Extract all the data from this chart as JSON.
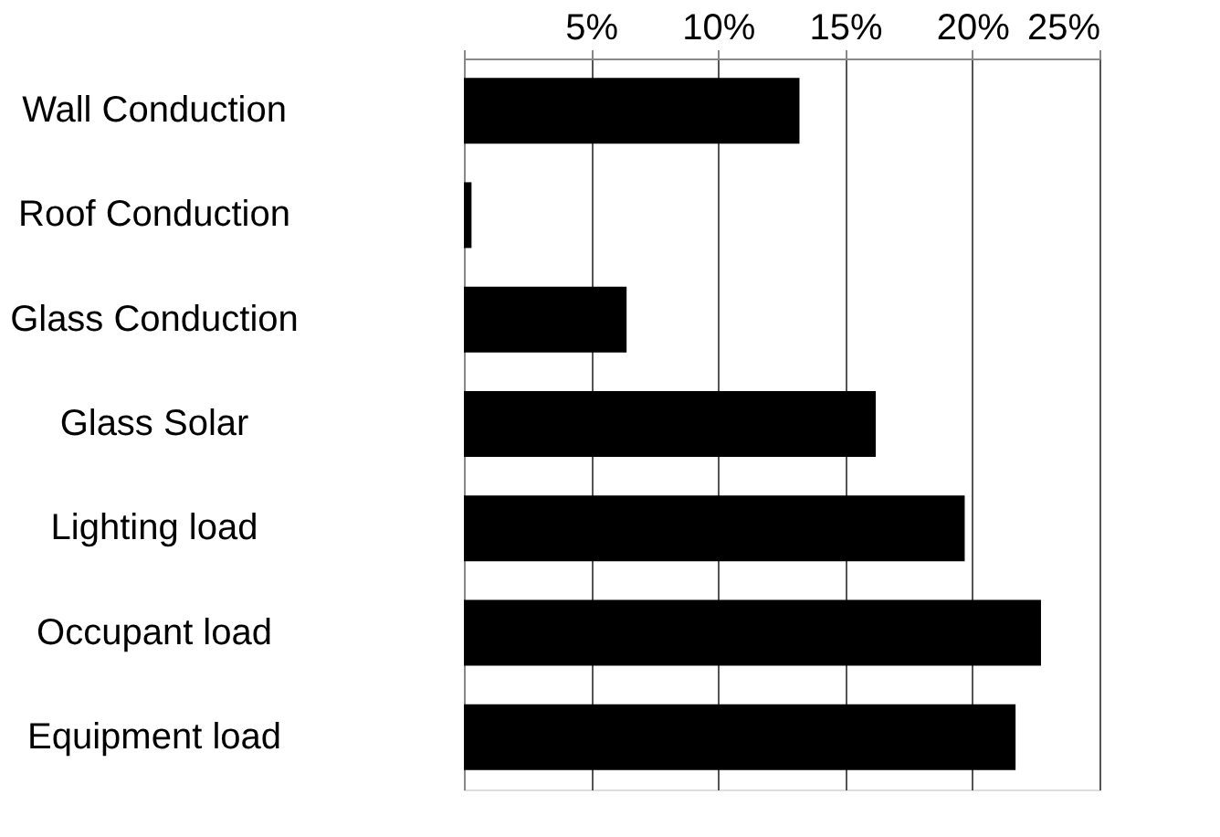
{
  "chart_data": {
    "type": "bar",
    "orientation": "horizontal",
    "categories": [
      "Wall Conduction",
      "Roof Conduction",
      "Glass Conduction",
      "Glass Solar",
      "Lighting load",
      "Occupant load",
      "Equipment load"
    ],
    "values": [
      13.2,
      0.3,
      6.4,
      16.2,
      19.7,
      22.7,
      21.7
    ],
    "color": "#000000",
    "xlim": [
      0,
      25
    ],
    "xticks": [
      {
        "value": 0,
        "label": null
      },
      {
        "value": 5,
        "label": "5%"
      },
      {
        "value": 10,
        "label": "10%"
      },
      {
        "value": 15,
        "label": "15%"
      },
      {
        "value": 20,
        "label": "20%"
      },
      {
        "value": 25,
        "label": "25%"
      }
    ],
    "grid": "x"
  }
}
